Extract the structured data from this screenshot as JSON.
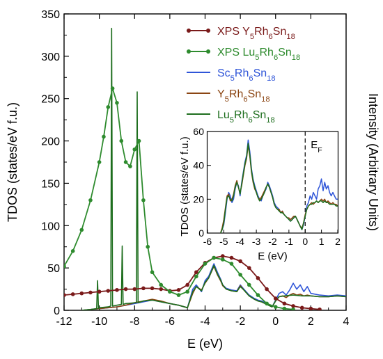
{
  "chart_data": [
    {
      "type": "line",
      "title": "",
      "xlabel": "E (eV)",
      "ylabel": "TDOS (states/eV f.u.)",
      "y2label": "Intensity (Arbitrary Units)",
      "xlim": [
        -12,
        4
      ],
      "ylim": [
        0,
        350
      ],
      "xticks": [
        "-12",
        "-10",
        "-8",
        "-6",
        "-4",
        "-2",
        "0",
        "2",
        "4"
      ],
      "yticks": [
        "0",
        "50",
        "100",
        "150",
        "200",
        "250",
        "300",
        "350"
      ],
      "legend_position": "top-right",
      "series": [
        {
          "name": "XPS Y5Rh6Sn18",
          "label_parts": [
            [
              "XPS Y",
              ""
            ],
            [
              "5",
              "sub"
            ],
            [
              "Rh",
              ""
            ],
            [
              "6",
              "sub"
            ],
            [
              "Sn",
              ""
            ],
            [
              "18",
              "sub"
            ]
          ],
          "color": "#7a1a1a",
          "style": "line-markers",
          "x": [
            -12,
            -11.5,
            -11,
            -10.5,
            -10,
            -9.5,
            -9,
            -8.5,
            -8,
            -7.5,
            -7,
            -6.5,
            -6,
            -5.5,
            -5,
            -4.5,
            -4,
            -3.5,
            -3,
            -2.5,
            -2,
            -1.5,
            -1,
            -0.5,
            0,
            0.5,
            1,
            1.5,
            2,
            2.5
          ],
          "y": [
            18,
            19,
            20,
            21,
            22,
            23,
            24,
            25,
            25,
            26,
            26,
            25,
            23,
            24,
            30,
            45,
            56,
            62,
            64,
            62,
            58,
            50,
            38,
            25,
            14,
            8,
            5,
            3,
            2,
            1
          ]
        },
        {
          "name": "XPS Lu5Rh6Sn18",
          "label_parts": [
            [
              "XPS Lu",
              ""
            ],
            [
              "5",
              "sub"
            ],
            [
              "Rh",
              ""
            ],
            [
              "6",
              "sub"
            ],
            [
              "Sn",
              ""
            ],
            [
              "18",
              "sub"
            ]
          ],
          "color": "#2e8b2e",
          "style": "line-markers",
          "x": [
            -12,
            -11.5,
            -11,
            -10.5,
            -10,
            -9.75,
            -9.5,
            -9.25,
            -9,
            -8.75,
            -8.5,
            -8.25,
            -8,
            -7.75,
            -7.5,
            -7.25,
            -7,
            -6.5,
            -6,
            -5.5,
            -5,
            -4.5,
            -4,
            -3.5,
            -3,
            -2.5,
            -2,
            -1.5,
            -1,
            -0.5,
            0,
            0.5,
            1
          ],
          "y": [
            52,
            70,
            95,
            130,
            175,
            205,
            240,
            262,
            245,
            200,
            175,
            170,
            190,
            200,
            130,
            75,
            45,
            30,
            22,
            18,
            22,
            40,
            55,
            62,
            60,
            55,
            42,
            30,
            18,
            8,
            4,
            2,
            1
          ]
        },
        {
          "name": "Sc5Rh6Sn18",
          "label_parts": [
            [
              "Sc",
              ""
            ],
            [
              "5",
              "sub"
            ],
            [
              "Rh",
              ""
            ],
            [
              "6",
              "sub"
            ],
            [
              "Sn",
              ""
            ],
            [
              "18",
              "sub"
            ]
          ],
          "color": "#2f55d8",
          "style": "line",
          "x": [
            -11,
            -10.5,
            -10,
            -9.5,
            -9,
            -8.5,
            -8,
            -7.5,
            -7,
            -6.5,
            -6,
            -5.5,
            -5,
            -4.7,
            -4.5,
            -4.2,
            -4,
            -3.8,
            -3.5,
            -3.3,
            -3.1,
            -3,
            -2.8,
            -2.5,
            -2.2,
            -2,
            -1.8,
            -1.5,
            -1.2,
            -1,
            -0.8,
            -0.5,
            -0.2,
            0,
            0.2,
            0.4,
            0.6,
            0.8,
            1,
            1.2,
            1.4,
            1.6,
            1.8,
            2,
            2.5,
            3,
            3.5,
            4
          ],
          "y": [
            0,
            1,
            2,
            3,
            4,
            6,
            8,
            10,
            12,
            10,
            8,
            6,
            3,
            25,
            30,
            22,
            35,
            40,
            55,
            45,
            36,
            30,
            26,
            24,
            23,
            30,
            25,
            18,
            14,
            12,
            11,
            8,
            4,
            12,
            20,
            22,
            18,
            24,
            32,
            25,
            30,
            22,
            28,
            20,
            18,
            17,
            18,
            17
          ]
        },
        {
          "name": "Y5Rh6Sn18",
          "label_parts": [
            [
              "Y",
              ""
            ],
            [
              "5",
              "sub"
            ],
            [
              "Rh",
              ""
            ],
            [
              "6",
              "sub"
            ],
            [
              "Sn",
              ""
            ],
            [
              "18",
              "sub"
            ]
          ],
          "color": "#8b4513",
          "style": "line",
          "x": [
            -11,
            -10.5,
            -10,
            -9.5,
            -9,
            -8.5,
            -8,
            -7.5,
            -7,
            -6.5,
            -6,
            -5.5,
            -5,
            -4.7,
            -4.5,
            -4.2,
            -4,
            -3.8,
            -3.5,
            -3.3,
            -3.1,
            -3,
            -2.8,
            -2.5,
            -2.2,
            -2,
            -1.8,
            -1.5,
            -1.2,
            -1,
            -0.8,
            -0.5,
            -0.2,
            0,
            0.2,
            0.4,
            0.6,
            0.8,
            1,
            1.2,
            1.4,
            1.6,
            1.8,
            2,
            2.5,
            3,
            3.5,
            4
          ],
          "y": [
            0,
            1,
            2,
            3,
            4,
            6,
            9,
            11,
            13,
            11,
            8,
            6,
            3,
            20,
            28,
            24,
            32,
            38,
            52,
            42,
            34,
            29,
            25,
            23,
            22,
            29,
            24,
            17,
            13,
            11,
            10,
            7,
            4,
            11,
            16,
            17,
            15,
            18,
            20,
            18,
            19,
            17,
            18,
            17,
            16,
            16,
            17,
            16
          ]
        },
        {
          "name": "Lu5Rh6Sn18",
          "label_parts": [
            [
              "Lu",
              ""
            ],
            [
              "5",
              "sub"
            ],
            [
              "Rh",
              ""
            ],
            [
              "6",
              "sub"
            ],
            [
              "Sn",
              ""
            ],
            [
              "18",
              "sub"
            ]
          ],
          "color": "#1e6e1e",
          "style": "line",
          "x": [
            -11,
            -10.5,
            -10.15,
            -10.1,
            -10.05,
            -10,
            -9.5,
            -9.35,
            -9.3,
            -9.25,
            -9,
            -8.75,
            -8.7,
            -8.65,
            -8.5,
            -7.9,
            -7.85,
            -7.8,
            -7.5,
            -7,
            -6.5,
            -6,
            -5.5,
            -5,
            -4.7,
            -4.5,
            -4.2,
            -4,
            -3.8,
            -3.5,
            -3.3,
            -3.1,
            -3,
            -2.8,
            -2.5,
            -2.2,
            -2,
            -1.8,
            -1.5,
            -1.2,
            -1,
            -0.8,
            -0.5,
            -0.2,
            0,
            0.2,
            0.5,
            1,
            1.5,
            2,
            2.5,
            3,
            3.5,
            4
          ],
          "y": [
            0,
            1,
            2,
            35,
            2,
            3,
            4,
            5,
            333,
            5,
            6,
            7,
            76,
            7,
            8,
            9,
            258,
            9,
            11,
            12,
            10,
            8,
            6,
            3,
            22,
            28,
            23,
            33,
            38,
            53,
            43,
            35,
            30,
            25,
            23,
            22,
            28,
            24,
            17,
            13,
            11,
            10,
            7,
            4,
            11,
            16,
            17,
            18,
            17,
            17,
            16,
            16,
            17,
            16
          ]
        }
      ]
    },
    {
      "type": "line",
      "title": "",
      "xlabel": "E (eV)",
      "ylabel": "TDOS (states/eV f.u.)",
      "xlim": [
        -6,
        2
      ],
      "ylim": [
        0,
        60
      ],
      "xticks": [
        "-6",
        "-5",
        "-4",
        "-3",
        "-2",
        "-1",
        "0",
        "1",
        "2"
      ],
      "yticks": [
        "0",
        "20",
        "40",
        "60"
      ],
      "annotation_parts": [
        [
          "E",
          ""
        ],
        [
          "F",
          "sub"
        ]
      ],
      "fermi_level": 0,
      "series": [
        {
          "name": "Sc5Rh6Sn18",
          "color": "#2f55d8",
          "x": [
            -5.2,
            -5.1,
            -5,
            -4.9,
            -4.8,
            -4.7,
            -4.6,
            -4.5,
            -4.4,
            -4.3,
            -4.2,
            -4.1,
            -4,
            -3.9,
            -3.8,
            -3.7,
            -3.6,
            -3.5,
            -3.4,
            -3.3,
            -3.2,
            -3.1,
            -3,
            -2.9,
            -2.8,
            -2.7,
            -2.6,
            -2.5,
            -2.4,
            -2.3,
            -2.2,
            -2.1,
            -2,
            -1.9,
            -1.8,
            -1.7,
            -1.6,
            -1.5,
            -1.4,
            -1.3,
            -1.2,
            -1.1,
            -1,
            -0.9,
            -0.8,
            -0.7,
            -0.6,
            -0.5,
            -0.4,
            -0.3,
            -0.2,
            -0.1,
            0,
            0.1,
            0.2,
            0.3,
            0.4,
            0.5,
            0.6,
            0.7,
            0.8,
            0.9,
            1,
            1.1,
            1.2,
            1.3,
            1.4,
            1.5,
            1.6,
            1.7,
            1.8,
            1.9,
            2
          ],
          "y": [
            0,
            2,
            5,
            12,
            20,
            24,
            22,
            18,
            20,
            26,
            30,
            28,
            22,
            30,
            36,
            42,
            46,
            55,
            48,
            38,
            32,
            28,
            25,
            22,
            20,
            19,
            22,
            24,
            26,
            30,
            28,
            25,
            22,
            18,
            16,
            15,
            14,
            12,
            13,
            11,
            10,
            9,
            8,
            7,
            8,
            9,
            10,
            8,
            6,
            4,
            2,
            5,
            10,
            16,
            18,
            22,
            20,
            24,
            22,
            20,
            26,
            28,
            32,
            25,
            30,
            26,
            28,
            24,
            22,
            24,
            22,
            20,
            20
          ]
        },
        {
          "name": "Y5Rh6Sn18",
          "color": "#8b4513",
          "x": [
            -5.2,
            -5.1,
            -5,
            -4.9,
            -4.8,
            -4.7,
            -4.6,
            -4.5,
            -4.4,
            -4.3,
            -4.2,
            -4.1,
            -4,
            -3.9,
            -3.8,
            -3.7,
            -3.6,
            -3.5,
            -3.4,
            -3.3,
            -3.2,
            -3.1,
            -3,
            -2.9,
            -2.8,
            -2.7,
            -2.6,
            -2.5,
            -2.4,
            -2.3,
            -2.2,
            -2.1,
            -2,
            -1.9,
            -1.8,
            -1.7,
            -1.6,
            -1.5,
            -1.4,
            -1.3,
            -1.2,
            -1.1,
            -1,
            -0.9,
            -0.8,
            -0.7,
            -0.6,
            -0.5,
            -0.4,
            -0.3,
            -0.2,
            -0.1,
            0,
            0.1,
            0.2,
            0.3,
            0.4,
            0.5,
            0.6,
            0.7,
            0.8,
            0.9,
            1,
            1.1,
            1.2,
            1.3,
            1.4,
            1.5,
            1.6,
            1.7,
            1.8,
            1.9,
            2
          ],
          "y": [
            0,
            3,
            8,
            15,
            22,
            23,
            19,
            20,
            23,
            28,
            31,
            27,
            24,
            28,
            34,
            40,
            44,
            52,
            45,
            36,
            30,
            26,
            24,
            21,
            20,
            21,
            23,
            25,
            27,
            29,
            27,
            24,
            21,
            17,
            15,
            14,
            14,
            12,
            13,
            11,
            10,
            9,
            9,
            8,
            9,
            10,
            10,
            8,
            6,
            4,
            3,
            6,
            11,
            14,
            16,
            17,
            18,
            17,
            18,
            19,
            18,
            19,
            20,
            19,
            20,
            18,
            19,
            18,
            17,
            18,
            17,
            17,
            16
          ]
        },
        {
          "name": "Lu5Rh6Sn18",
          "color": "#1e6e1e",
          "x": [
            -5.2,
            -5.1,
            -5,
            -4.9,
            -4.8,
            -4.7,
            -4.6,
            -4.5,
            -4.4,
            -4.3,
            -4.2,
            -4.1,
            -4,
            -3.9,
            -3.8,
            -3.7,
            -3.6,
            -3.5,
            -3.4,
            -3.3,
            -3.2,
            -3.1,
            -3,
            -2.9,
            -2.8,
            -2.7,
            -2.6,
            -2.5,
            -2.4,
            -2.3,
            -2.2,
            -2.1,
            -2,
            -1.9,
            -1.8,
            -1.7,
            -1.6,
            -1.5,
            -1.4,
            -1.3,
            -1.2,
            -1.1,
            -1,
            -0.9,
            -0.8,
            -0.7,
            -0.6,
            -0.5,
            -0.4,
            -0.3,
            -0.2,
            -0.1,
            0,
            0.1,
            0.2,
            0.3,
            0.4,
            0.5,
            0.6,
            0.7,
            0.8,
            0.9,
            1,
            1.1,
            1.2,
            1.3,
            1.4,
            1.5,
            1.6,
            1.7,
            1.8,
            1.9,
            2
          ],
          "y": [
            0,
            2,
            6,
            14,
            21,
            22,
            20,
            19,
            22,
            27,
            30,
            27,
            23,
            29,
            35,
            41,
            45,
            53,
            46,
            37,
            31,
            27,
            24,
            21,
            19,
            20,
            22,
            24,
            27,
            29,
            27,
            24,
            21,
            17,
            15,
            14,
            13,
            12,
            12,
            11,
            10,
            9,
            8,
            7,
            8,
            9,
            10,
            8,
            6,
            4,
            2,
            6,
            10,
            14,
            16,
            17,
            17,
            18,
            18,
            19,
            18,
            19,
            19,
            18,
            19,
            18,
            18,
            17,
            17,
            17,
            17,
            16,
            16
          ]
        }
      ]
    }
  ]
}
